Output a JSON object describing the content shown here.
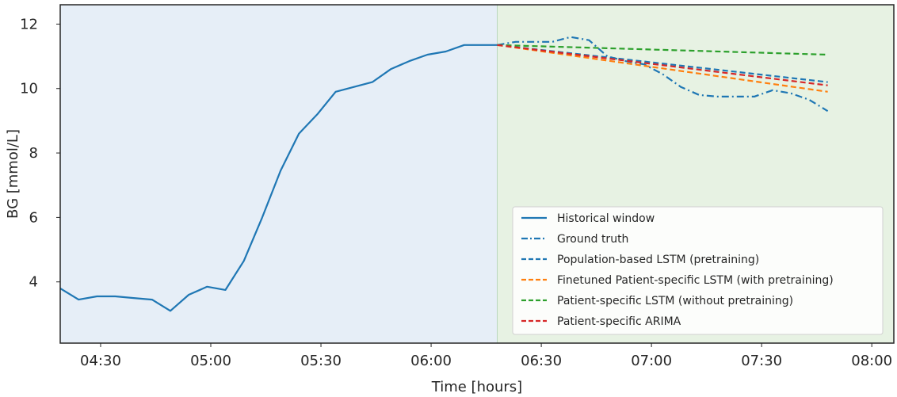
{
  "chart_data": {
    "type": "line",
    "xlabel": "Time [hours]",
    "ylabel": "BG [mmol/L]",
    "x_ticks": [
      "04:30",
      "05:00",
      "05:30",
      "06:00",
      "06:30",
      "07:00",
      "07:30",
      "08:00"
    ],
    "y_ticks": [
      "4",
      "6",
      "8",
      "10",
      "12"
    ],
    "xlim": [
      "04:19",
      "08:06"
    ],
    "ylim": [
      2.1,
      12.6
    ],
    "grid": false,
    "legend_position": "lower-right",
    "regions": [
      {
        "from": "04:19",
        "to": "06:18",
        "color": "#e6eef7"
      },
      {
        "from": "06:18",
        "to": "08:06",
        "color": "#e7f2e3"
      }
    ],
    "series": [
      {
        "name": "Historical window",
        "color": "#1f77b4",
        "dash": "solid",
        "x": [
          "04:19",
          "04:24",
          "04:29",
          "04:34",
          "04:39",
          "04:44",
          "04:49",
          "04:54",
          "04:59",
          "05:04",
          "05:09",
          "05:14",
          "05:19",
          "05:24",
          "05:29",
          "05:34",
          "05:39",
          "05:44",
          "05:49",
          "05:54",
          "05:59",
          "06:04",
          "06:09",
          "06:14",
          "06:18"
        ],
        "y": [
          3.8,
          3.45,
          3.55,
          3.55,
          3.5,
          3.45,
          3.1,
          3.6,
          3.85,
          3.75,
          4.65,
          6.0,
          7.45,
          8.6,
          9.2,
          9.9,
          10.05,
          10.2,
          10.6,
          10.85,
          11.05,
          11.15,
          11.35,
          11.35,
          11.35
        ]
      },
      {
        "name": "Ground truth",
        "color": "#1f77b4",
        "dash": "dashdot",
        "x": [
          "06:18",
          "06:23",
          "06:28",
          "06:33",
          "06:38",
          "06:43",
          "06:48",
          "06:53",
          "06:58",
          "07:03",
          "07:08",
          "07:13",
          "07:18",
          "07:23",
          "07:28",
          "07:33",
          "07:38",
          "07:43",
          "07:48"
        ],
        "y": [
          11.35,
          11.45,
          11.45,
          11.45,
          11.6,
          11.5,
          11.0,
          10.85,
          10.75,
          10.45,
          10.05,
          9.8,
          9.75,
          9.75,
          9.75,
          9.95,
          9.85,
          9.65,
          9.3
        ]
      },
      {
        "name": "Population-based LSTM (pretraining)",
        "color": "#1f77b4",
        "dash": "dashed",
        "x": [
          "06:18",
          "07:48"
        ],
        "y": [
          11.35,
          10.2
        ]
      },
      {
        "name": "Finetuned Patient-specific LSTM (with pretraining)",
        "color": "#ff7f0e",
        "dash": "dashed",
        "x": [
          "06:18",
          "07:48"
        ],
        "y": [
          11.35,
          9.9
        ]
      },
      {
        "name": "Patient-specific LSTM (without pretraining)",
        "color": "#2ca02c",
        "dash": "dashed",
        "x": [
          "06:18",
          "07:48"
        ],
        "y": [
          11.35,
          11.05
        ]
      },
      {
        "name": "Patient-specific ARIMA",
        "color": "#d62728",
        "dash": "dashed",
        "x": [
          "06:18",
          "07:48"
        ],
        "y": [
          11.35,
          10.1
        ]
      }
    ]
  }
}
